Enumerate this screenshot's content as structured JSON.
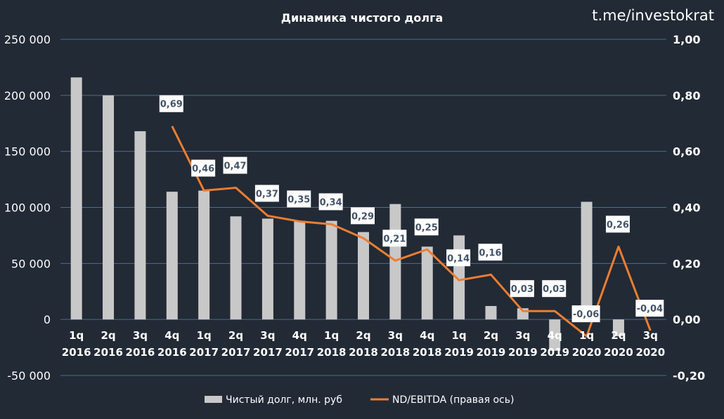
{
  "watermark": "t.me/investokrat",
  "chart_data": {
    "type": "bar",
    "title": "Динамика чистого долга",
    "categories": [
      [
        "1q",
        "2016"
      ],
      [
        "2q",
        "2016"
      ],
      [
        "3q",
        "2016"
      ],
      [
        "4q",
        "2016"
      ],
      [
        "1q",
        "2017"
      ],
      [
        "2q",
        "2017"
      ],
      [
        "3q",
        "2017"
      ],
      [
        "4q",
        "2017"
      ],
      [
        "1q",
        "2018"
      ],
      [
        "2q",
        "2018"
      ],
      [
        "3q",
        "2018"
      ],
      [
        "4q",
        "2018"
      ],
      [
        "1q",
        "2019"
      ],
      [
        "2q",
        "2019"
      ],
      [
        "3q",
        "2019"
      ],
      [
        "4q",
        "2019"
      ],
      [
        "1q",
        "2020"
      ],
      [
        "2q",
        "2020"
      ],
      [
        "3q",
        "2020"
      ]
    ],
    "series": [
      {
        "name": "Чистый долг, млн. руб",
        "type": "bar",
        "axis": "left",
        "color": "#c8c8c8",
        "values": [
          216000,
          200000,
          168000,
          114000,
          115000,
          92000,
          90000,
          88000,
          88000,
          78000,
          103000,
          65000,
          75000,
          12000,
          10000,
          -28000,
          105000,
          -15000,
          0
        ]
      },
      {
        "name": "ND/EBITDA (правая ось)",
        "type": "line",
        "axis": "right",
        "color": "#ed7d31",
        "values": [
          null,
          null,
          null,
          0.69,
          0.46,
          0.47,
          0.37,
          0.35,
          0.34,
          0.29,
          0.21,
          0.25,
          0.14,
          0.16,
          0.03,
          0.03,
          -0.06,
          0.26,
          -0.04
        ],
        "labels": [
          null,
          null,
          null,
          "0,69",
          "0,46",
          "0,47",
          "0,37",
          "0,35",
          "0,34",
          "0,29",
          "0,21",
          "0,25",
          "0,14",
          "0,16",
          "0,03",
          "0,03",
          "-0,06",
          "0,26",
          "-0,04"
        ]
      }
    ],
    "y_left": {
      "ylim": [
        -50000,
        250000
      ],
      "ticks": [
        250000,
        200000,
        150000,
        100000,
        50000,
        0,
        -50000
      ],
      "tick_labels": [
        "250 000",
        "200 000",
        "150 000",
        "100 000",
        "50 000",
        "0",
        "-50 000"
      ]
    },
    "y_right": {
      "ylim": [
        -0.2,
        1.0
      ],
      "ticks": [
        1.0,
        0.8,
        0.6,
        0.4,
        0.2,
        0.0,
        -0.2
      ],
      "tick_labels": [
        "1,00",
        "0,80",
        "0,60",
        "0,40",
        "0,20",
        "0,00",
        "-0,20"
      ]
    },
    "grid": true,
    "legend": "bottom",
    "colors": {
      "background": "#222a35",
      "grid": "#4f6b8f",
      "text": "#ffffff",
      "label_box": "#ffffff",
      "label_text": "#44546a"
    }
  }
}
